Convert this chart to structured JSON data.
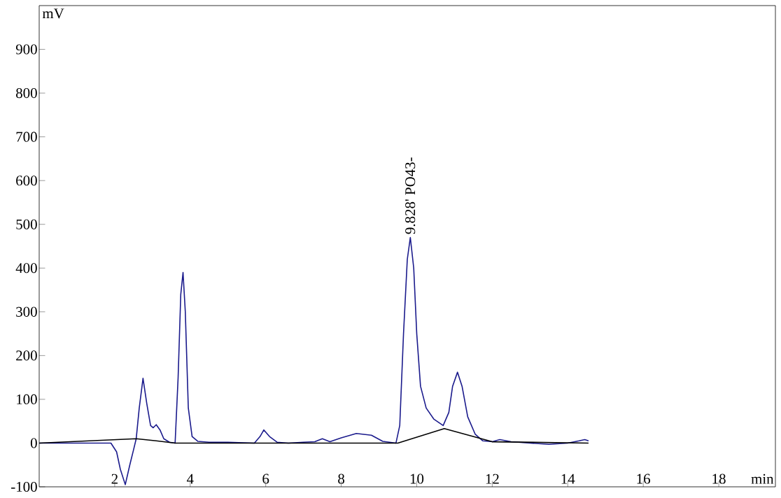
{
  "chart_data": {
    "type": "line",
    "xlabel": "min",
    "ylabel": "mV",
    "xlim": [
      0,
      19.5
    ],
    "ylim": [
      -100,
      1000
    ],
    "xticks": [
      2,
      4,
      6,
      8,
      10,
      12,
      14,
      16,
      18
    ],
    "yticks": [
      -100,
      0,
      100,
      200,
      300,
      400,
      500,
      600,
      700,
      800,
      900
    ],
    "series": [
      {
        "color": "#1a1a8c",
        "x": [
          0,
          1.9,
          2.05,
          2.15,
          2.28,
          2.4,
          2.5,
          2.57,
          2.65,
          2.75,
          2.85,
          2.95,
          3.02,
          3.1,
          3.2,
          3.3,
          3.45,
          3.6,
          3.68,
          3.75,
          3.81,
          3.87,
          3.95,
          4.05,
          4.2,
          4.5,
          5.0,
          5.7,
          5.85,
          5.95,
          6.1,
          6.3,
          6.6,
          7.0,
          7.3,
          7.5,
          7.7,
          8.0,
          8.4,
          8.8,
          9.1,
          9.45,
          9.55,
          9.65,
          9.75,
          9.83,
          9.92,
          10.0,
          10.1,
          10.25,
          10.45,
          10.7,
          10.85,
          10.95,
          11.08,
          11.2,
          11.35,
          11.55,
          11.75,
          12.0,
          12.2,
          12.5,
          13.0,
          13.5,
          14.0,
          14.3,
          14.45,
          14.55
        ],
        "values": [
          0,
          0,
          -20,
          -60,
          -95,
          -50,
          -15,
          10,
          80,
          148,
          90,
          40,
          35,
          42,
          30,
          10,
          2,
          0,
          150,
          340,
          390,
          300,
          80,
          15,
          4,
          2,
          2,
          0,
          15,
          30,
          15,
          2,
          0,
          2,
          3,
          10,
          3,
          12,
          22,
          18,
          4,
          0,
          40,
          250,
          420,
          470,
          400,
          250,
          130,
          80,
          55,
          40,
          70,
          130,
          162,
          130,
          60,
          20,
          5,
          3,
          8,
          3,
          0,
          -3,
          0,
          5,
          8,
          5
        ]
      },
      {
        "color": "#000000",
        "x": [
          0,
          2.57,
          3.1,
          3.6,
          9.5,
          10.73,
          12.0,
          14.55
        ],
        "values": [
          0,
          10,
          5,
          0,
          0,
          33,
          3,
          0
        ]
      }
    ],
    "annotations": [
      {
        "text": "9.828' PO43-",
        "x": 9.828,
        "y": 470
      }
    ]
  }
}
